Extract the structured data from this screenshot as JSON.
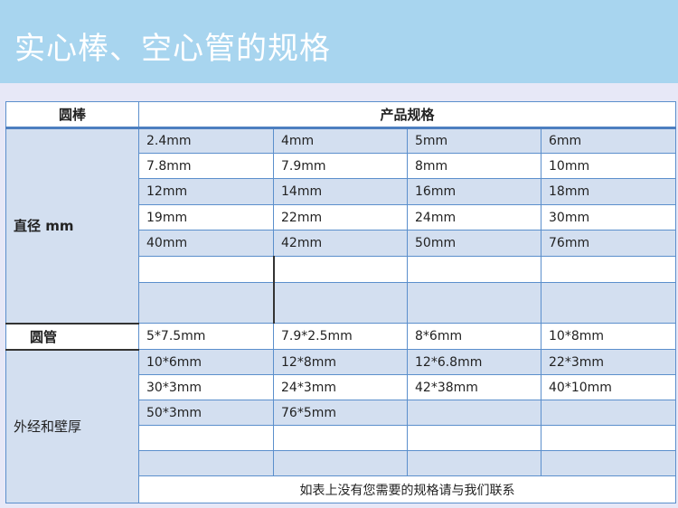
{
  "title": "实心棒、空心管的规格",
  "colors": {
    "title_bar": "#a8d5ef",
    "shaded_row": "#d3dff0",
    "border": "#5b8fcc"
  },
  "table": {
    "header": {
      "left": "圆棒",
      "right": "产品规格"
    },
    "rod": {
      "label": "直径 mm",
      "rows": [
        [
          "2.4mm",
          "4mm",
          "5mm",
          "6mm"
        ],
        [
          "7.8mm",
          "7.9mm",
          "8mm",
          "10mm"
        ],
        [
          "12mm",
          "14mm",
          "16mm",
          "18mm"
        ],
        [
          "19mm",
          "22mm",
          "24mm",
          "30mm"
        ],
        [
          "40mm",
          "42mm",
          "50mm",
          "76mm"
        ],
        [
          "",
          "",
          "",
          ""
        ],
        [
          "",
          "",
          "",
          ""
        ]
      ]
    },
    "pipe": {
      "header_label": "圆管",
      "header_row": [
        "5*7.5mm",
        "7.9*2.5mm",
        "8*6mm",
        "10*8mm"
      ],
      "label": "外经和壁厚",
      "rows": [
        [
          "10*6mm",
          "12*8mm",
          "12*6.8mm",
          "22*3mm"
        ],
        [
          "30*3mm",
          "24*3mm",
          "42*38mm",
          "40*10mm"
        ],
        [
          "50*3mm",
          "76*5mm",
          "",
          ""
        ],
        [
          "",
          "",
          "",
          ""
        ],
        [
          "",
          "",
          "",
          ""
        ]
      ],
      "note": "如表上没有您需要的规格请与我们联系"
    }
  }
}
